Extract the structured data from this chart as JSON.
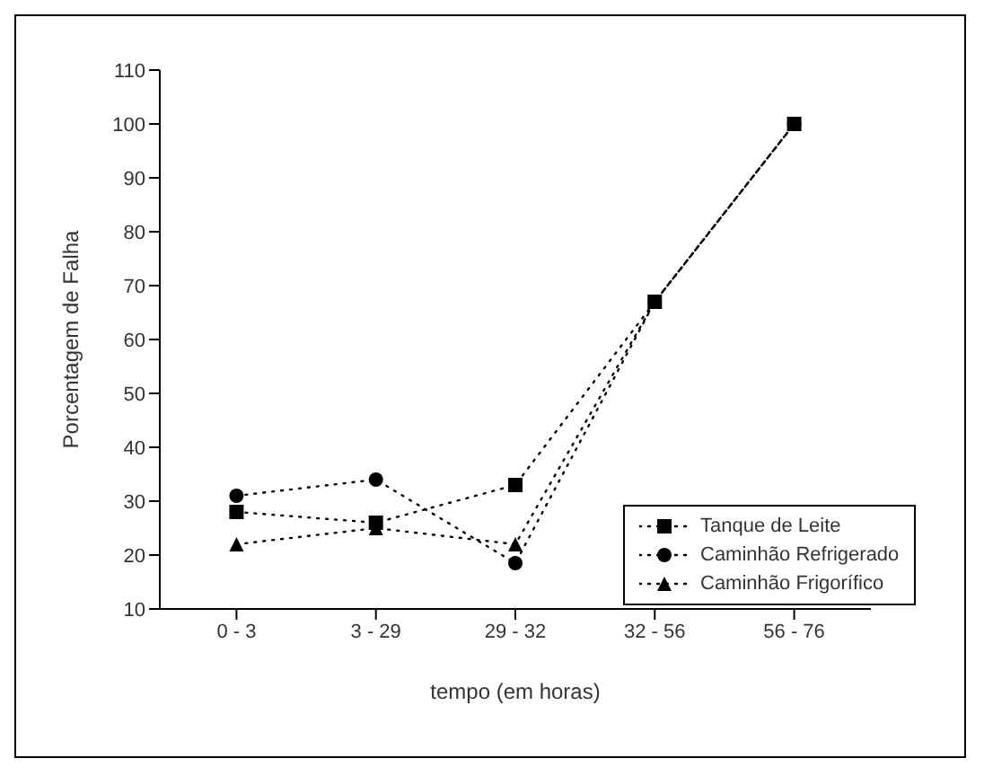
{
  "chart_data": {
    "type": "line",
    "xlabel": "tempo (em horas)",
    "ylabel": "Porcentagem de Falha",
    "categories": [
      "0 - 3",
      "3 - 29",
      "29 - 32",
      "32 - 56",
      "56 - 76"
    ],
    "series": [
      {
        "name": "Tanque de Leite",
        "color": "#000000",
        "marker": "square",
        "values": [
          28,
          26,
          33,
          67,
          100
        ]
      },
      {
        "name": "Caminhão Refrigerado",
        "color": "#000000",
        "marker": "circle",
        "values": [
          31,
          34,
          18.5,
          67,
          100
        ]
      },
      {
        "name": "Caminhão Frigorífico",
        "color": "#000000",
        "marker": "triangle",
        "values": [
          22,
          25,
          22,
          67,
          100
        ]
      }
    ],
    "ylim": [
      10,
      110
    ],
    "yticks": [
      10,
      20,
      30,
      40,
      50,
      60,
      70,
      80,
      90,
      100,
      110
    ],
    "grid": false,
    "legend": "bottom right",
    "line_style": "dotted"
  }
}
